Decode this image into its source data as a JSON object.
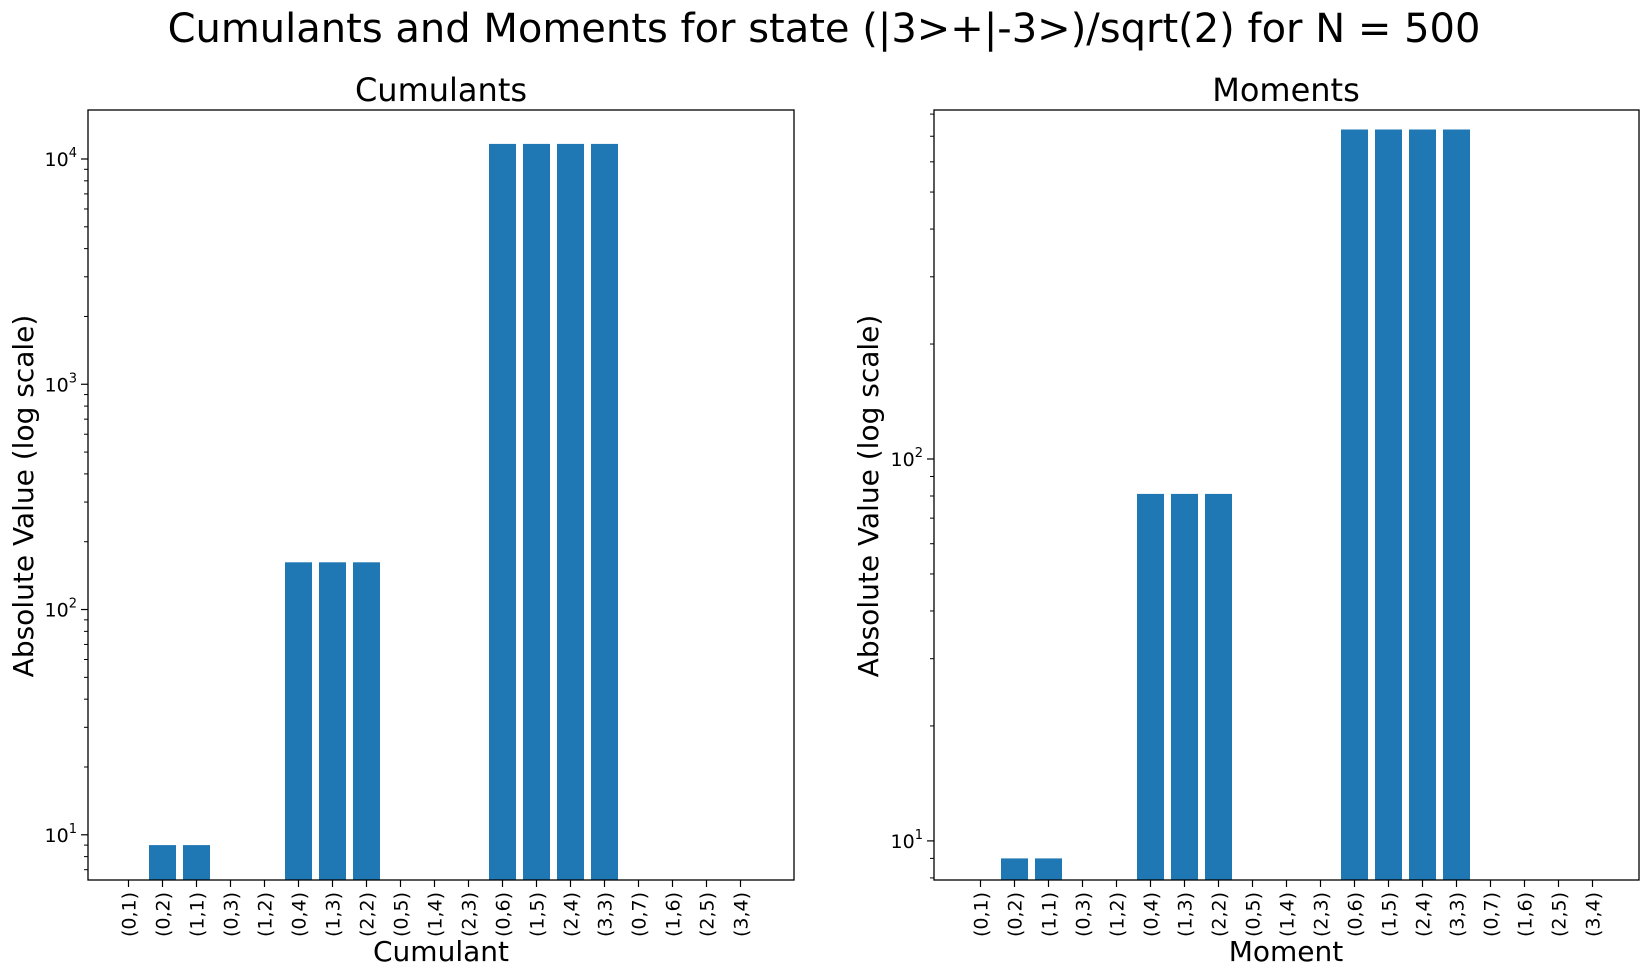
{
  "figure": {
    "suptitle": "Cumulants and Moments for state (|3>+|-3>)/sqrt(2) for N = 500",
    "bar_color": "#1f77b4"
  },
  "chart_data": [
    {
      "type": "bar",
      "title": "Cumulants",
      "xlabel": "Cumulant",
      "ylabel": "Absolute Value (log scale)",
      "yscale": "log",
      "ylim": [
        6.3,
        16500
      ],
      "grid": false,
      "legend": "none",
      "yticks": [
        {
          "value": 10,
          "base": "10",
          "exp": "1"
        },
        {
          "value": 100,
          "base": "10",
          "exp": "2"
        },
        {
          "value": 1000,
          "base": "10",
          "exp": "3"
        },
        {
          "value": 10000,
          "base": "10",
          "exp": "4"
        }
      ],
      "categories": [
        "(0,1)",
        "(0,2)",
        "(1,1)",
        "(0,3)",
        "(1,2)",
        "(0,4)",
        "(1,3)",
        "(2,2)",
        "(0,5)",
        "(1,4)",
        "(2,3)",
        "(0,6)",
        "(1,5)",
        "(2,4)",
        "(3,3)",
        "(0,7)",
        "(1,6)",
        "(2,5)",
        "(3,4)"
      ],
      "values": [
        0,
        9,
        9,
        0,
        0,
        162,
        162,
        162,
        0,
        0,
        0,
        11664,
        11664,
        11664,
        11664,
        0,
        0,
        0,
        0
      ]
    },
    {
      "type": "bar",
      "title": "Moments",
      "xlabel": "Moment",
      "ylabel": "Absolute Value (log scale)",
      "yscale": "log",
      "ylim": [
        7.9,
        820
      ],
      "grid": false,
      "legend": "none",
      "yticks": [
        {
          "value": 10,
          "base": "10",
          "exp": "1"
        },
        {
          "value": 100,
          "base": "10",
          "exp": "2"
        }
      ],
      "categories": [
        "(0,1)",
        "(0,2)",
        "(1,1)",
        "(0,3)",
        "(1,2)",
        "(0,4)",
        "(1,3)",
        "(2,2)",
        "(0,5)",
        "(1,4)",
        "(2,3)",
        "(0,6)",
        "(1,5)",
        "(2,4)",
        "(3,3)",
        "(0,7)",
        "(1,6)",
        "(2,5)",
        "(3,4)"
      ],
      "values": [
        0,
        9,
        9,
        0,
        0,
        81,
        81,
        81,
        0,
        0,
        0,
        729,
        729,
        729,
        729,
        0,
        0,
        0,
        0
      ]
    }
  ]
}
